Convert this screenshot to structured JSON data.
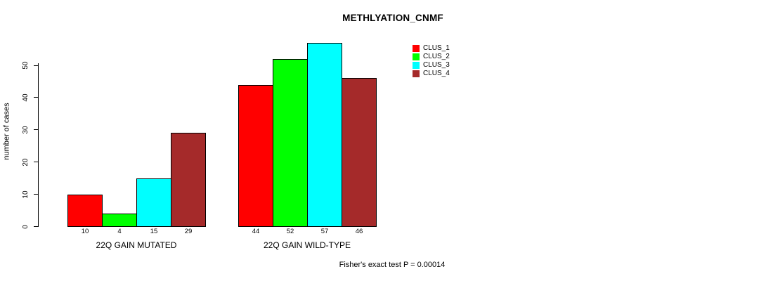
{
  "chart_data": {
    "type": "bar",
    "title": "METHLYATION_CNMF",
    "ylabel": "number of cases",
    "xlabel": "",
    "ylim": [
      0,
      57.5
    ],
    "yticks": [
      0,
      10,
      20,
      30,
      40,
      50
    ],
    "grid": false,
    "legend_position": "top-right",
    "categories": [
      "22Q GAIN MUTATED",
      "22Q GAIN WILD-TYPE"
    ],
    "series": [
      {
        "name": "CLUS_1",
        "color": "#ff0000",
        "values": [
          10,
          44
        ]
      },
      {
        "name": "CLUS_2",
        "color": "#00ff00",
        "values": [
          4,
          52
        ]
      },
      {
        "name": "CLUS_3",
        "color": "#00ffff",
        "values": [
          15,
          57
        ]
      },
      {
        "name": "CLUS_4",
        "color": "#a52a2a",
        "values": [
          29,
          46
        ]
      }
    ],
    "show_bar_values": true,
    "bar_border_color": "#000000",
    "annotation": "Fisher's exact test P = 0.00014"
  }
}
